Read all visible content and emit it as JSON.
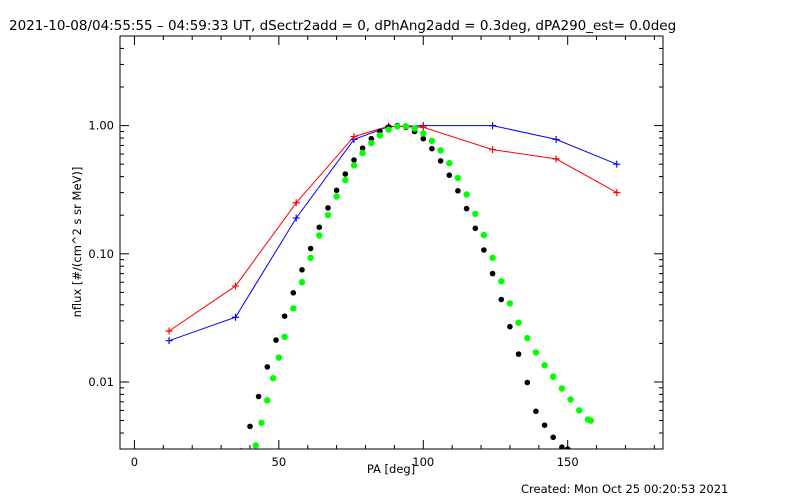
{
  "chart_data": {
    "type": "line",
    "title": "2021-10-08/04:55:55 – 04:59:33 UT, dSectr2add = 0, dPhAng2add = 0.3deg, dPA290_est=  0.0deg",
    "xlabel": "PA [deg]",
    "ylabel": "nflux [#/(cm^2 s sr MeV)]",
    "footer": "Created: Mon Oct 25 00:20:53 2021",
    "xlim": [
      -5,
      183
    ],
    "ylim": [
      0.003,
      5.0
    ],
    "y_scale": "log",
    "grid": false,
    "x_ticks": [
      0,
      50,
      100,
      150
    ],
    "x_tick_labels": [
      "0",
      "50",
      "100",
      "150"
    ],
    "y_ticks": [
      0.01,
      0.1,
      1.0
    ],
    "y_tick_labels": [
      "0.01",
      "0.10",
      "1.00"
    ],
    "colors": {
      "red": "#ff0000",
      "blue": "#0000ff",
      "black": "#000000",
      "green": "#00ff00"
    },
    "series": [
      {
        "color": "blue",
        "style": "line-with-plus-markers",
        "x": [
          12,
          35,
          56,
          76,
          88,
          100,
          124,
          146,
          167
        ],
        "y": [
          0.021,
          0.032,
          0.19,
          0.78,
          0.98,
          1.0,
          1.0,
          0.78,
          0.5
        ]
      },
      {
        "color": "red",
        "style": "line-with-plus-markers",
        "x": [
          12,
          35,
          56,
          76,
          88,
          100,
          124,
          146,
          167
        ],
        "y": [
          0.025,
          0.056,
          0.25,
          0.82,
          0.99,
          0.97,
          0.65,
          0.55,
          0.3
        ]
      },
      {
        "color": "black",
        "style": "dots",
        "x": [
          37,
          40,
          43,
          46,
          49,
          52,
          55,
          58,
          61,
          64,
          67,
          70,
          73,
          76,
          79,
          82,
          85,
          88,
          91,
          94,
          97,
          100,
          103,
          106,
          109,
          112,
          115,
          118,
          121,
          124,
          127,
          130,
          133,
          136,
          139,
          142,
          145,
          148,
          150
        ],
        "y": [
          0.0029,
          0.0045,
          0.0077,
          0.0131,
          0.0212,
          0.0326,
          0.0496,
          0.075,
          0.11,
          0.161,
          0.228,
          0.313,
          0.419,
          0.539,
          0.666,
          0.79,
          0.9,
          0.975,
          1.0,
          0.97,
          0.9,
          0.79,
          0.66,
          0.53,
          0.41,
          0.31,
          0.225,
          0.158,
          0.107,
          0.07,
          0.044,
          0.027,
          0.0165,
          0.0099,
          0.0059,
          0.0046,
          0.0037,
          0.0031,
          0.003
        ]
      },
      {
        "color": "green",
        "style": "dots",
        "x": [
          42,
          44,
          46,
          48,
          50,
          52,
          55,
          58,
          61,
          64,
          67,
          70,
          73,
          76,
          79,
          82,
          85,
          88,
          91,
          94,
          97,
          100,
          103,
          106,
          109,
          112,
          115,
          118,
          121,
          124,
          127,
          130,
          133,
          136,
          139,
          142,
          145,
          148,
          151,
          154,
          157,
          158
        ],
        "y": [
          0.0032,
          0.0048,
          0.0072,
          0.0107,
          0.0155,
          0.0225,
          0.0375,
          0.06,
          0.093,
          0.139,
          0.2,
          0.28,
          0.376,
          0.49,
          0.61,
          0.73,
          0.84,
          0.93,
          0.985,
          0.99,
          0.95,
          0.87,
          0.76,
          0.64,
          0.51,
          0.39,
          0.29,
          0.205,
          0.14,
          0.093,
          0.061,
          0.041,
          0.029,
          0.022,
          0.017,
          0.0135,
          0.011,
          0.0089,
          0.0073,
          0.006,
          0.0051,
          0.005
        ]
      }
    ]
  }
}
